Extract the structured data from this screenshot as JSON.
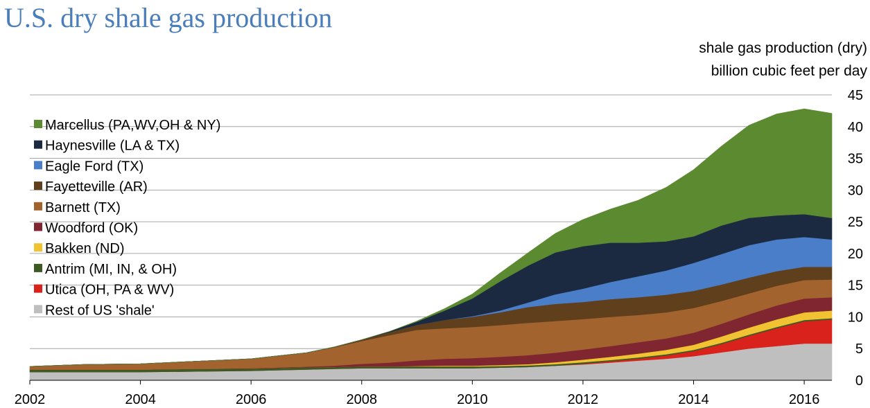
{
  "chart_data": {
    "type": "area",
    "stacked": true,
    "title": "U.S. dry shale gas production",
    "ylabel_line1": "shale gas production (dry)",
    "ylabel_line2": "billion cubic feet per day",
    "xlabel": "",
    "xlim": [
      2002,
      2016.5
    ],
    "ylim": [
      0,
      45
    ],
    "x_ticks": [
      "2002",
      "2004",
      "2006",
      "2008",
      "2010",
      "2012",
      "2014",
      "2016"
    ],
    "y_ticks": [
      "0",
      "5",
      "10",
      "15",
      "20",
      "25",
      "30",
      "35",
      "40",
      "45"
    ],
    "legend_position": "top-left",
    "x": [
      2002.0,
      2003.0,
      2004.0,
      2005.0,
      2006.0,
      2007.0,
      2007.5,
      2008.0,
      2008.5,
      2009.0,
      2009.5,
      2010.0,
      2010.5,
      2011.0,
      2011.5,
      2012.0,
      2012.5,
      2013.0,
      2013.5,
      2014.0,
      2014.5,
      2015.0,
      2015.5,
      2016.0,
      2016.5
    ],
    "series": [
      {
        "name": "Rest of US 'shale'",
        "color": "#bfbfbf",
        "values": [
          1.3,
          1.3,
          1.3,
          1.4,
          1.5,
          1.7,
          1.8,
          1.9,
          1.9,
          1.9,
          1.9,
          1.9,
          2.0,
          2.1,
          2.3,
          2.5,
          2.8,
          3.1,
          3.4,
          3.8,
          4.4,
          5.0,
          5.4,
          5.8,
          5.8
        ]
      },
      {
        "name": "Utica (OH, PA & WV)",
        "color": "#d9221c",
        "values": [
          0,
          0,
          0,
          0,
          0,
          0,
          0,
          0,
          0,
          0,
          0,
          0,
          0,
          0,
          0,
          0.1,
          0.2,
          0.3,
          0.5,
          0.8,
          1.3,
          2.0,
          2.8,
          3.5,
          3.8
        ]
      },
      {
        "name": "Antrim (MI, IN, & OH)",
        "color": "#3d5a24",
        "values": [
          0.4,
          0.4,
          0.4,
          0.4,
          0.35,
          0.35,
          0.3,
          0.3,
          0.3,
          0.3,
          0.3,
          0.3,
          0.25,
          0.25,
          0.25,
          0.25,
          0.2,
          0.2,
          0.2,
          0.2,
          0.2,
          0.2,
          0.2,
          0.2,
          0.2
        ]
      },
      {
        "name": "Bakken (ND)",
        "color": "#f1c232",
        "values": [
          0,
          0,
          0,
          0,
          0,
          0,
          0,
          0,
          0,
          0.05,
          0.1,
          0.1,
          0.15,
          0.2,
          0.3,
          0.4,
          0.5,
          0.6,
          0.7,
          0.8,
          1.0,
          1.1,
          1.2,
          1.2,
          1.2
        ]
      },
      {
        "name": "Woodford (OK)",
        "color": "#7f2630",
        "values": [
          0,
          0,
          0,
          0,
          0.05,
          0.1,
          0.2,
          0.4,
          0.6,
          0.9,
          1.1,
          1.2,
          1.3,
          1.4,
          1.5,
          1.6,
          1.7,
          1.8,
          1.8,
          1.9,
          2.0,
          2.1,
          2.2,
          2.2,
          2.1
        ]
      },
      {
        "name": "Barnett (TX)",
        "color": "#a3632e",
        "values": [
          0.5,
          0.8,
          0.9,
          1.2,
          1.5,
          2.2,
          2.9,
          3.6,
          4.3,
          4.8,
          4.8,
          4.9,
          5.0,
          5.1,
          5.0,
          4.8,
          4.6,
          4.3,
          4.1,
          3.9,
          3.6,
          3.3,
          3.1,
          2.9,
          2.8
        ]
      },
      {
        "name": "Fayetteville (AR)",
        "color": "#5f3f1c",
        "values": [
          0,
          0,
          0,
          0,
          0,
          0,
          0.05,
          0.2,
          0.5,
          0.8,
          1.3,
          1.6,
          2.0,
          2.5,
          2.7,
          2.7,
          2.8,
          2.8,
          2.8,
          2.7,
          2.6,
          2.5,
          2.3,
          2.1,
          2.0
        ]
      },
      {
        "name": "Eagle Ford (TX)",
        "color": "#4a7ec9",
        "values": [
          0,
          0,
          0,
          0,
          0,
          0,
          0,
          0,
          0,
          0,
          0,
          0.1,
          0.3,
          0.7,
          1.5,
          2.1,
          2.7,
          3.3,
          3.8,
          4.4,
          4.8,
          5.1,
          5.0,
          4.7,
          4.3
        ]
      },
      {
        "name": "Haynesville (LA & TX)",
        "color": "#1b2a41",
        "values": [
          0,
          0,
          0,
          0,
          0,
          0,
          0,
          0,
          0.1,
          0.5,
          1.5,
          2.8,
          4.6,
          5.8,
          6.6,
          6.7,
          6.2,
          5.3,
          4.6,
          4.2,
          4.5,
          4.3,
          3.8,
          3.6,
          3.4
        ]
      },
      {
        "name": "Marcellus (PA,WV,OH & NY)",
        "color": "#5b8a30",
        "values": [
          0,
          0,
          0,
          0,
          0,
          0,
          0,
          0,
          0,
          0.1,
          0.3,
          0.7,
          1.3,
          2.0,
          3.0,
          4.2,
          5.3,
          6.7,
          8.5,
          10.5,
          12.5,
          14.6,
          16.0,
          16.6,
          16.5
        ]
      }
    ]
  }
}
